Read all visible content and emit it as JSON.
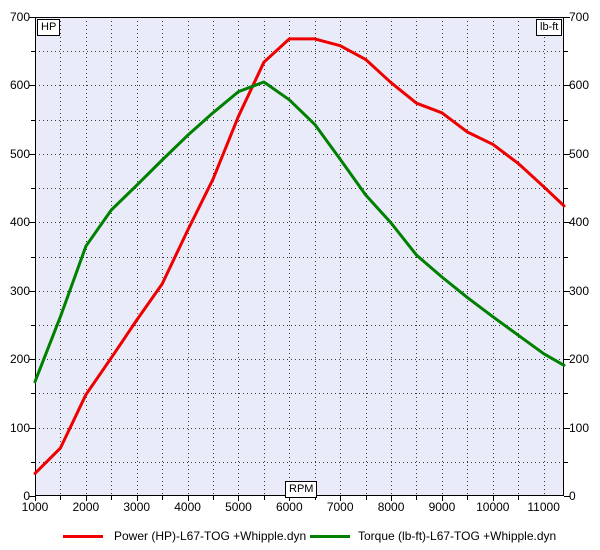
{
  "labels": {
    "hp_box": "HP",
    "lbft_box": "lb-ft",
    "rpm_box": "RPM"
  },
  "legend": {
    "power": "Power (HP)-L67-TOG +Whipple.dyn",
    "torque": "Torque (lb-ft)-L67-TOG +Whipple.dyn"
  },
  "chart_data": {
    "type": "line",
    "title": "",
    "xlabel": "RPM",
    "ylabel_left": "HP",
    "ylabel_right": "lb-ft",
    "xlim": [
      1000,
      11400
    ],
    "ylim": [
      0,
      700
    ],
    "x_ticks": [
      1000,
      2000,
      3000,
      4000,
      5000,
      6000,
      7000,
      8000,
      9000,
      10000,
      11000
    ],
    "y_ticks": [
      0,
      100,
      200,
      300,
      400,
      500,
      600,
      700
    ],
    "x_minor_step": 500,
    "y_minor_step": 50,
    "grid": "dotted gridlines every 500 RPM and every 50 units",
    "legend_position": "bottom",
    "plot_bg": "#e9ebf8",
    "grid_color": "#3a3a3a",
    "axis_color": "#000000",
    "x": [
      1000,
      1500,
      2000,
      2500,
      3000,
      3500,
      4000,
      4500,
      5000,
      5500,
      6000,
      6500,
      7000,
      7500,
      8000,
      8500,
      9000,
      9500,
      10000,
      10500,
      11000,
      11400
    ],
    "series": [
      {
        "name": "Power (HP)-L67-TOG +Whipple.dyn",
        "color": "#ee0000",
        "peak": {
          "value": 668,
          "rpm": 6200
        },
        "values": [
          33,
          70,
          148,
          202,
          257,
          310,
          388,
          463,
          555,
          634,
          668,
          668,
          658,
          638,
          604,
          574,
          560,
          532,
          514,
          486,
          452,
          424
        ]
      },
      {
        "name": "Torque (lb-ft)-L67-TOG +Whipple.dyn",
        "color": "#008000",
        "peak": {
          "value": 605,
          "rpm": 5500
        },
        "values": [
          167,
          262,
          365,
          418,
          454,
          491,
          527,
          560,
          591,
          605,
          579,
          543,
          492,
          440,
          399,
          352,
          320,
          290,
          262,
          235,
          208,
          191
        ]
      }
    ]
  }
}
